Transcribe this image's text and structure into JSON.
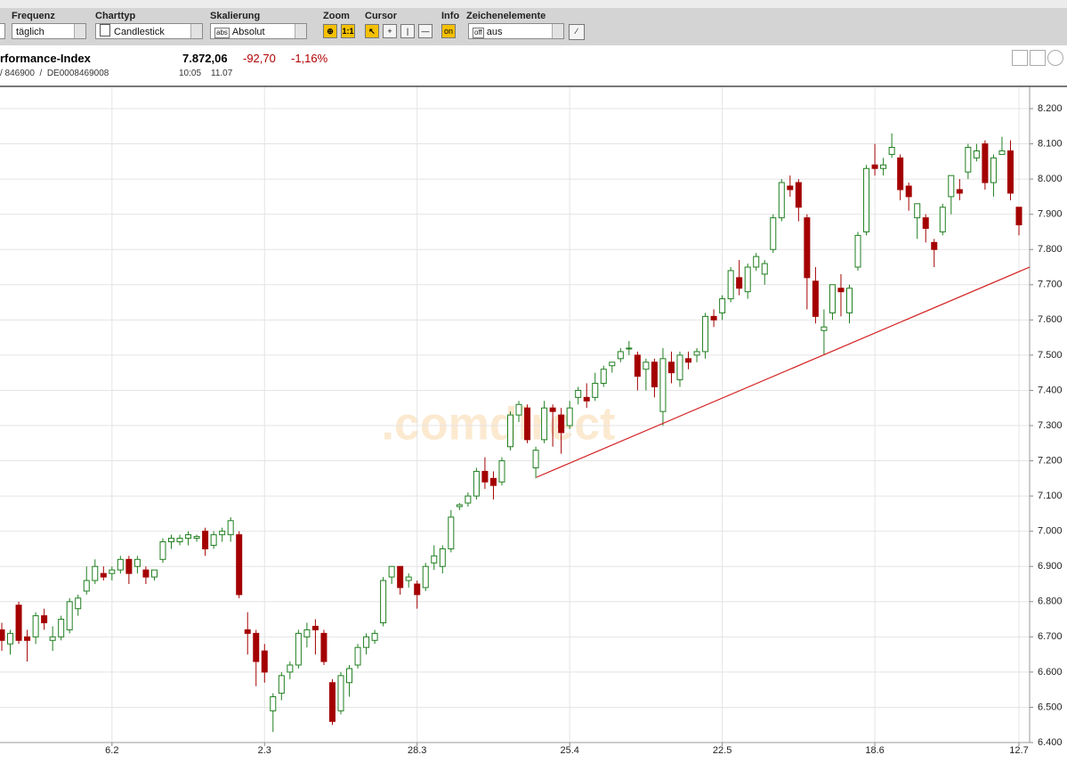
{
  "toolbar": {
    "frequency": {
      "label": "Frequenz",
      "value": "täglich"
    },
    "chart_type": {
      "label": "Charttyp",
      "value": "Candlestick"
    },
    "scaling": {
      "label": "Skalierung",
      "icon": "abs",
      "value": "Absolut"
    },
    "zoom": {
      "label": "Zoom",
      "reset": "1:1"
    },
    "cursor": {
      "label": "Cursor"
    },
    "info": {
      "label": "Info",
      "state": "on"
    },
    "drawing": {
      "label": "Zeichenelemente",
      "icon": "off",
      "value": "aus"
    }
  },
  "instrument": {
    "name": "rformance-Index",
    "price": "7.872,06",
    "change": "-92,70",
    "change_pct": "-1,16%",
    "ids": "/ 846900  /  DE0008469008",
    "time": "10:05",
    "date": "11.07"
  },
  "watermark": ".comdirect",
  "chart_data": {
    "type": "candlestick",
    "up_color": "#1f7f1f",
    "down_color": "#a40000",
    "grid": true,
    "ylim": [
      6400,
      8200
    ],
    "yticks": [
      {
        "value": 6400,
        "label": "6.400"
      },
      {
        "value": 6500,
        "label": "6.500"
      },
      {
        "value": 6600,
        "label": "6.600"
      },
      {
        "value": 6700,
        "label": "6.700"
      },
      {
        "value": 6800,
        "label": "6.800"
      },
      {
        "value": 6900,
        "label": "6.900"
      },
      {
        "value": 7000,
        "label": "7.000"
      },
      {
        "value": 7100,
        "label": "7.100"
      },
      {
        "value": 7200,
        "label": "7.200"
      },
      {
        "value": 7300,
        "label": "7.300"
      },
      {
        "value": 7400,
        "label": "7.400"
      },
      {
        "value": 7500,
        "label": "7.500"
      },
      {
        "value": 7600,
        "label": "7.600"
      },
      {
        "value": 7700,
        "label": "7.700"
      },
      {
        "value": 7800,
        "label": "7.800"
      },
      {
        "value": 7900,
        "label": "7.900"
      },
      {
        "value": 8000,
        "label": "8.000"
      },
      {
        "value": 8100,
        "label": "8.100"
      },
      {
        "value": 8200,
        "label": "8.200"
      }
    ],
    "categories": [
      null,
      null,
      null,
      null,
      null,
      null,
      null,
      null,
      null,
      null,
      null,
      null,
      null,
      "6.2",
      null,
      null,
      null,
      null,
      null,
      null,
      null,
      null,
      null,
      null,
      null,
      null,
      null,
      null,
      null,
      null,
      null,
      "2.3",
      null,
      null,
      null,
      null,
      null,
      null,
      null,
      null,
      null,
      null,
      null,
      null,
      null,
      null,
      null,
      null,
      null,
      "28.3",
      null,
      null,
      null,
      null,
      null,
      null,
      null,
      null,
      null,
      null,
      null,
      null,
      null,
      null,
      null,
      null,
      null,
      "25.4",
      null,
      null,
      null,
      null,
      null,
      null,
      null,
      null,
      null,
      null,
      null,
      null,
      null,
      null,
      null,
      null,
      null,
      "22.5",
      null,
      null,
      null,
      null,
      null,
      null,
      null,
      null,
      null,
      null,
      null,
      null,
      null,
      null,
      null,
      null,
      null,
      "18.6",
      null,
      null,
      null,
      null,
      null,
      null,
      null,
      null,
      null,
      null,
      null,
      null,
      null,
      null,
      null,
      null,
      "12.7"
    ],
    "open": [
      6720,
      6680,
      6790,
      6700,
      6700,
      6760,
      6690,
      6700,
      6720,
      6780,
      6830,
      6860,
      6880,
      6880,
      6890,
      6920,
      6900,
      6890,
      6870,
      6920,
      6970,
      6970,
      6980,
      6980,
      7000,
      6960,
      6990,
      6990,
      6990,
      6720,
      6710,
      6660,
      6490,
      6540,
      6600,
      6620,
      6700,
      6730,
      6710,
      6570,
      6490,
      6570,
      6620,
      6670,
      6690,
      6740,
      6870,
      6900,
      6860,
      6850,
      6840,
      6910,
      6900,
      6950,
      7070,
      7080,
      7100,
      7170,
      7150,
      7140,
      7240,
      7330,
      7350,
      7180,
      7260,
      7350,
      7330,
      7300,
      7380,
      7380,
      7380,
      7420,
      7470,
      7490,
      7520,
      7500,
      7460,
      7480,
      7340,
      7480,
      7430,
      7490,
      7500,
      7510,
      7610,
      7620,
      7660,
      7720,
      7680,
      7750,
      7730,
      7800,
      7890,
      7980,
      7990,
      7890,
      7710,
      7570,
      7620,
      7690,
      7620,
      7750,
      7850,
      8040,
      8030,
      8070,
      8060,
      7980,
      7890,
      7890,
      7820,
      7850,
      7950,
      7970,
      8020,
      8060,
      8100,
      7990,
      8070,
      8080,
      7920
    ],
    "high": [
      6740,
      6720,
      6800,
      6720,
      6770,
      6780,
      6730,
      6760,
      6810,
      6820,
      6900,
      6920,
      6900,
      6900,
      6930,
      6930,
      6930,
      6900,
      6890,
      6980,
      6990,
      6990,
      7000,
      6990,
      7010,
      7000,
      7010,
      7040,
      7000,
      6770,
      6720,
      6680,
      6540,
      6600,
      6630,
      6720,
      6740,
      6750,
      6720,
      6580,
      6600,
      6620,
      6680,
      6710,
      6720,
      6870,
      6900,
      6900,
      6880,
      6860,
      6910,
      6960,
      6960,
      7060,
      7080,
      7110,
      7180,
      7210,
      7170,
      7210,
      7340,
      7370,
      7360,
      7240,
      7370,
      7360,
      7350,
      7370,
      7410,
      7420,
      7450,
      7470,
      7480,
      7520,
      7540,
      7510,
      7490,
      7490,
      7520,
      7510,
      7510,
      7510,
      7520,
      7620,
      7630,
      7670,
      7750,
      7770,
      7760,
      7790,
      7770,
      7900,
      8000,
      8010,
      8000,
      7900,
      7750,
      7630,
      7700,
      7730,
      7700,
      7850,
      8040,
      8100,
      8060,
      8130,
      8070,
      7990,
      7930,
      7900,
      7830,
      7930,
      8010,
      8000,
      8100,
      8100,
      8110,
      8070,
      8120,
      8110,
      7920
    ],
    "low": [
      6660,
      6650,
      6680,
      6630,
      6680,
      6720,
      6660,
      6690,
      6710,
      6760,
      6820,
      6850,
      6860,
      6860,
      6880,
      6850,
      6880,
      6850,
      6860,
      6910,
      6950,
      6960,
      6960,
      6970,
      6930,
      6950,
      6970,
      6970,
      6810,
      6650,
      6560,
      6570,
      6430,
      6520,
      6580,
      6610,
      6670,
      6650,
      6620,
      6450,
      6480,
      6530,
      6610,
      6650,
      6680,
      6730,
      6850,
      6820,
      6840,
      6780,
      6830,
      6890,
      6880,
      6940,
      7060,
      7070,
      7090,
      7120,
      7090,
      7130,
      7230,
      7310,
      7250,
      7150,
      7250,
      7240,
      7220,
      7290,
      7360,
      7350,
      7370,
      7410,
      7450,
      7480,
      7500,
      7400,
      7400,
      7380,
      7300,
      7420,
      7410,
      7460,
      7480,
      7490,
      7580,
      7600,
      7650,
      7670,
      7660,
      7740,
      7700,
      7790,
      7880,
      7950,
      7880,
      7630,
      7590,
      7500,
      7600,
      7610,
      7590,
      7740,
      7840,
      8010,
      8010,
      8060,
      7940,
      7910,
      7830,
      7820,
      7750,
      7840,
      7900,
      7940,
      8000,
      8050,
      7970,
      7950,
      8070,
      7940,
      7840
    ],
    "close": [
      6690,
      6710,
      6690,
      6690,
      6760,
      6740,
      6700,
      6750,
      6800,
      6810,
      6860,
      6900,
      6870,
      6890,
      6920,
      6880,
      6920,
      6870,
      6890,
      6970,
      6980,
      6980,
      6990,
      6985,
      6950,
      6990,
      7000,
      7030,
      6820,
      6710,
      6630,
      6600,
      6530,
      6590,
      6620,
      6710,
      6720,
      6720,
      6630,
      6460,
      6590,
      6610,
      6670,
      6700,
      6710,
      6860,
      6900,
      6840,
      6870,
      6820,
      6900,
      6930,
      6950,
      7040,
      7075,
      7100,
      7170,
      7140,
      7130,
      7200,
      7330,
      7360,
      7260,
      7230,
      7350,
      7340,
      7280,
      7350,
      7400,
      7370,
      7420,
      7460,
      7480,
      7510,
      7520,
      7440,
      7480,
      7410,
      7490,
      7450,
      7500,
      7480,
      7510,
      7610,
      7600,
      7660,
      7740,
      7690,
      7750,
      7780,
      7760,
      7890,
      7990,
      7970,
      7920,
      7720,
      7610,
      7580,
      7700,
      7680,
      7690,
      7840,
      8030,
      8030,
      8040,
      8090,
      7970,
      7950,
      7930,
      7860,
      7800,
      7920,
      8010,
      7960,
      8090,
      8080,
      7990,
      8060,
      8080,
      7960,
      7870
    ]
  }
}
